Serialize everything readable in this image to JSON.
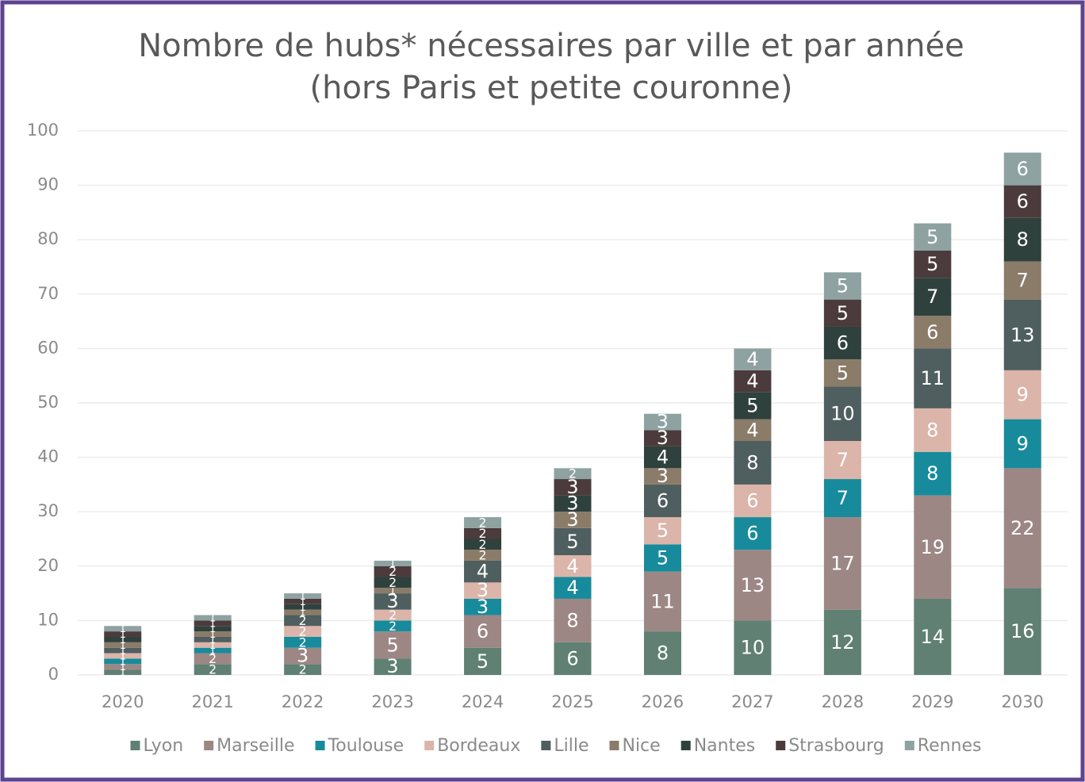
{
  "chart_data": {
    "type": "stacked_bar",
    "title": "Nombre de hubs* nécessaires par ville et par année",
    "subtitle": "(hors Paris et petite couronne)",
    "categories": [
      "2020",
      "2021",
      "2022",
      "2023",
      "2024",
      "2025",
      "2026",
      "2027",
      "2028",
      "2029",
      "2030"
    ],
    "series": [
      {
        "name": "Lyon",
        "color": "#5f8073",
        "values": [
          1,
          2,
          2,
          3,
          5,
          6,
          8,
          10,
          12,
          14,
          16
        ]
      },
      {
        "name": "Marseille",
        "color": "#9c8784",
        "values": [
          1,
          2,
          3,
          5,
          6,
          8,
          11,
          13,
          17,
          19,
          22
        ]
      },
      {
        "name": "Toulouse",
        "color": "#178b9b",
        "values": [
          1,
          1,
          2,
          2,
          3,
          4,
          5,
          6,
          7,
          8,
          9
        ]
      },
      {
        "name": "Bordeaux",
        "color": "#dbb4aa",
        "values": [
          1,
          1,
          2,
          2,
          3,
          4,
          5,
          6,
          7,
          8,
          9
        ]
      },
      {
        "name": "Lille",
        "color": "#4f5e5e",
        "values": [
          1,
          1,
          2,
          3,
          4,
          5,
          6,
          8,
          10,
          11,
          13
        ]
      },
      {
        "name": "Nice",
        "color": "#8b7b69",
        "values": [
          1,
          1,
          1,
          1,
          2,
          3,
          3,
          4,
          5,
          6,
          7
        ]
      },
      {
        "name": "Nantes",
        "color": "#2f413c",
        "values": [
          1,
          1,
          1,
          2,
          2,
          3,
          4,
          5,
          6,
          7,
          8
        ]
      },
      {
        "name": "Strasbourg",
        "color": "#4c3b3c",
        "values": [
          1,
          1,
          1,
          2,
          2,
          3,
          3,
          4,
          5,
          5,
          6
        ]
      },
      {
        "name": "Rennes",
        "color": "#8ea2a2",
        "values": [
          1,
          1,
          1,
          1,
          2,
          2,
          3,
          4,
          5,
          5,
          6
        ]
      }
    ],
    "ylim": [
      0,
      100
    ],
    "yticks": [
      0,
      10,
      20,
      30,
      40,
      50,
      60,
      70,
      80,
      90,
      100
    ],
    "grid": true,
    "legend": "bottom"
  }
}
